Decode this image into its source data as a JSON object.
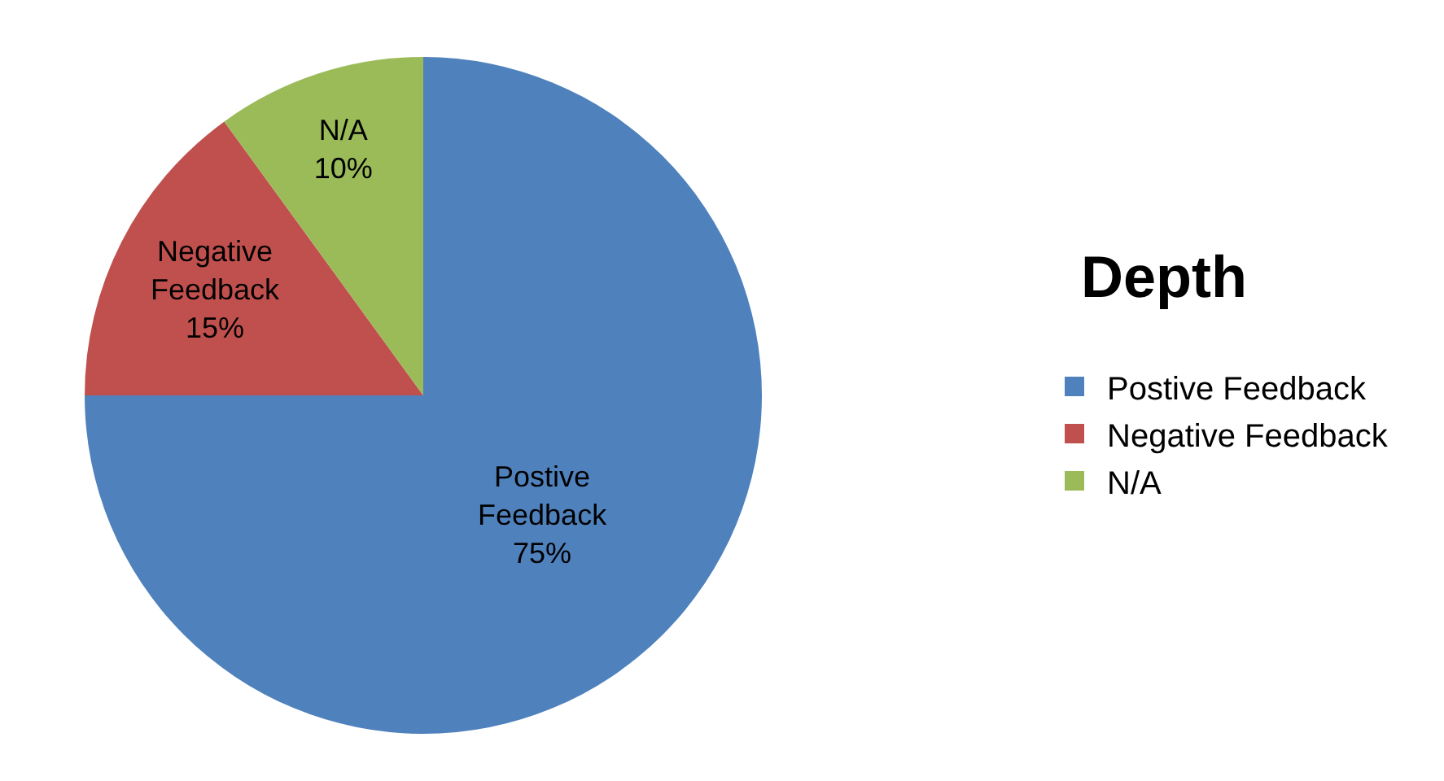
{
  "chart_data": {
    "type": "pie",
    "title": "Depth",
    "categories": [
      "Postive Feedback",
      "Negative Feedback",
      "N/A"
    ],
    "values": [
      75,
      15,
      10
    ],
    "colors": [
      "#4f81bd",
      "#c0504d",
      "#9bbb59"
    ],
    "value_labels": [
      "75%",
      "15%",
      "10%"
    ],
    "legend": "right"
  }
}
